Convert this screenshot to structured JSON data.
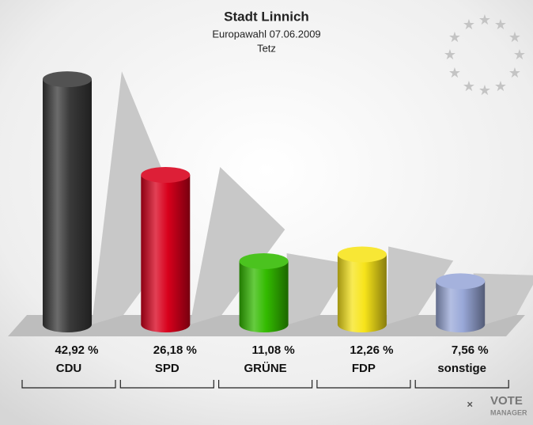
{
  "chart_data": {
    "type": "bar3d",
    "title": "Stadt Linnich",
    "subtitle": "Europawahl 07.06.2009",
    "subtitle2": "Tetz",
    "categories": [
      "CDU",
      "SPD",
      "GRÜNE",
      "FDP",
      "sonstige"
    ],
    "values": [
      42.92,
      26.18,
      11.08,
      12.26,
      7.56
    ],
    "value_labels": [
      "42,92 %",
      "26,18 %",
      "11,08 %",
      "12,26 %",
      "7,56 %"
    ],
    "colors": [
      "#3a3a3a",
      "#d8001c",
      "#33bb00",
      "#f7e41a",
      "#99a8d8"
    ],
    "logo": [
      "VOTE",
      "MANAGER"
    ]
  }
}
